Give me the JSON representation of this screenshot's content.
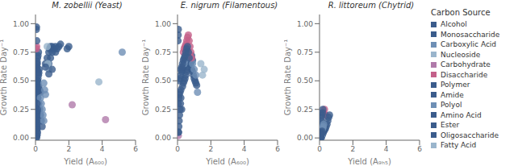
{
  "chart_data": [
    {
      "type": "scatter",
      "title": "M. zobellii (Yeast)",
      "x_label": "Yield (A₆₀₀)",
      "y_label": "Growth Rate Day⁻¹",
      "xlim": [
        0,
        6
      ],
      "ylim": [
        -0.02,
        1.08
      ],
      "xticks": [
        0,
        2,
        4,
        6
      ],
      "yticks": [
        {
          "value": 0,
          "label": "0.00"
        },
        {
          "value": 0.25,
          "label": "0.25"
        },
        {
          "value": 0.5,
          "label": "0.50"
        },
        {
          "value": 0.75,
          "label": "0.75"
        },
        {
          "value": 1.0,
          "label": "1.00"
        }
      ],
      "series": [
        {
          "name": "Alcohol",
          "color": "#3b5c8c",
          "x": [
            0.3,
            0.25,
            0.2,
            0.15,
            0.12,
            0.4,
            0.35,
            0.3,
            0.25,
            0.2,
            0.15,
            0.1,
            0.05
          ],
          "values": [
            0.4,
            0.42,
            0.45,
            0.48,
            0.5,
            0.1,
            0.15,
            0.2,
            0.25,
            0.3,
            0.35,
            0.4,
            0.45
          ]
        },
        {
          "name": "Monosaccharide",
          "color": "#3a5c8c",
          "x": [
            0.05,
            0.07,
            0.06,
            0.08,
            0.1,
            0.08,
            0.05,
            0.06,
            0.07,
            0.08,
            0.09,
            0.05,
            0.06,
            0.07,
            0.1,
            0.12,
            0.05,
            0.06,
            0.07,
            0.08,
            0.1,
            0.12,
            0.15,
            0.18,
            0.2,
            0.22,
            0.08,
            0.09,
            0.1,
            0.12,
            0.15,
            0.18,
            1.0,
            0.9,
            0.85,
            0.8,
            0.7,
            0.6,
            1.2,
            1.1,
            1.0,
            0.9,
            0.8,
            1.5,
            1.4,
            1.3,
            1.2,
            2.0,
            1.9
          ],
          "values": [
            0.02,
            0.03,
            0.05,
            0.07,
            0.08,
            0.1,
            0.12,
            0.15,
            0.18,
            0.2,
            0.22,
            0.25,
            0.28,
            0.3,
            0.32,
            0.35,
            0.38,
            0.4,
            0.42,
            0.45,
            0.48,
            0.5,
            0.52,
            0.55,
            0.57,
            0.6,
            0.62,
            0.65,
            0.67,
            0.7,
            0.72,
            0.75,
            0.8,
            0.8,
            0.78,
            0.75,
            0.7,
            0.65,
            0.8,
            0.78,
            0.75,
            0.7,
            0.65,
            0.82,
            0.8,
            0.78,
            0.75,
            0.8,
            0.78
          ]
        },
        {
          "name": "Carboxylic Acid",
          "color": "#6e8fb5",
          "x": [
            0.5,
            0.45,
            0.4,
            0.35,
            0.3,
            0.6,
            0.55,
            0.5
          ],
          "values": [
            0.15,
            0.2,
            0.25,
            0.3,
            0.35,
            0.38,
            0.42,
            0.48
          ]
        },
        {
          "name": "Nucleoside",
          "color": "#9ab5cc",
          "x": [
            0.8,
            0.75,
            0.7
          ],
          "values": [
            0.6,
            0.65,
            0.8
          ]
        },
        {
          "name": "Carbohydrate",
          "color": "#b07aaa",
          "x": [
            2.2,
            4.2
          ],
          "values": [
            0.29,
            0.16
          ]
        },
        {
          "name": "Disaccharide",
          "color": "#c4608a",
          "x": [
            0.05,
            0.07
          ],
          "values": [
            0.78,
            0.8
          ]
        },
        {
          "name": "Polymer",
          "color": "#3b5c8c",
          "x": [
            0.6,
            0.8,
            1.0
          ],
          "values": [
            0.62,
            0.56,
            0.6
          ]
        },
        {
          "name": "Amide",
          "color": "#3b5c8c",
          "x": [
            0.05,
            0.06,
            0.08,
            0.1
          ],
          "values": [
            0.62,
            0.56,
            0.6,
            0.3
          ]
        },
        {
          "name": "Polyol",
          "color": "#6e8fb5",
          "x": [
            5.2
          ],
          "values": [
            0.75
          ]
        },
        {
          "name": "Amino Acid",
          "color": "#3b5c8c",
          "x": [
            0.06,
            0.07,
            0.08,
            0.1,
            0.12,
            0.06,
            0.05,
            0.07,
            0.08,
            0.05,
            0.06,
            0.07,
            0.08,
            0.1,
            0.12
          ],
          "values": [
            0.0,
            0.01,
            0.02,
            0.03,
            0.05,
            0.07,
            0.09,
            0.11,
            0.13,
            0.15,
            0.17,
            0.19,
            0.21,
            0.23,
            0.25
          ]
        },
        {
          "name": "Ester",
          "color": "#3b5c8c",
          "x": [
            0.05,
            0.08,
            0.1,
            0.15
          ],
          "values": [
            0.95,
            0.85,
            0.65,
            0.58
          ]
        },
        {
          "name": "Oligosaccharide",
          "color": "#3b5c8c",
          "x": [
            0.06
          ],
          "values": [
            0.97
          ]
        },
        {
          "name": "Fatty Acid",
          "color": "#9ab5cc",
          "x": [
            3.8
          ],
          "values": [
            0.49
          ]
        }
      ]
    },
    {
      "type": "scatter",
      "title": "E. nigrum (Filamentous)",
      "x_label": "Yield (A₆₀₀)",
      "y_label": "Growth Rate Day⁻¹",
      "xlim": [
        0,
        6
      ],
      "ylim": [
        -0.02,
        1.08
      ],
      "xticks": [
        0,
        2,
        4,
        6
      ],
      "yticks": [
        {
          "value": 0,
          "label": "0.00"
        },
        {
          "value": 0.25,
          "label": "0.25"
        },
        {
          "value": 0.5,
          "label": "0.50"
        },
        {
          "value": 0.75,
          "label": "0.75"
        },
        {
          "value": 1.0,
          "label": "1.00"
        }
      ],
      "series": [
        {
          "name": "Alcohol",
          "color": "#3b5c8c",
          "x": [
            0.3,
            0.35,
            0.4,
            0.45,
            0.5,
            0.55,
            0.6,
            0.65,
            0.7,
            0.75,
            0.8,
            0.85,
            0.9
          ],
          "values": [
            0.45,
            0.48,
            0.5,
            0.52,
            0.55,
            0.58,
            0.6,
            0.62,
            0.65,
            0.68,
            0.7,
            0.72,
            0.68
          ]
        },
        {
          "name": "Monosaccharide",
          "color": "#3a5c8c",
          "x": [
            0.1,
            0.15,
            0.2,
            0.25,
            0.3,
            0.35,
            0.4,
            0.45,
            0.5,
            0.55,
            0.6,
            0.65,
            0.7,
            0.75,
            0.8,
            0.85,
            0.9,
            0.95,
            1.0,
            1.05,
            1.1,
            1.15
          ],
          "values": [
            0.5,
            0.52,
            0.55,
            0.58,
            0.6,
            0.62,
            0.65,
            0.68,
            0.7,
            0.72,
            0.65,
            0.68,
            0.7,
            0.72,
            0.65,
            0.6,
            0.58,
            0.55,
            0.52,
            0.5,
            0.48,
            0.46
          ]
        },
        {
          "name": "Carboxylic Acid",
          "color": "#6e8fb5",
          "x": [
            0.4,
            0.45,
            0.5,
            0.55,
            0.6,
            0.65,
            0.7,
            0.8,
            0.9,
            1.0,
            1.1,
            1.2
          ],
          "values": [
            0.65,
            0.68,
            0.7,
            0.72,
            0.74,
            0.75,
            0.73,
            0.7,
            0.65,
            0.6,
            0.55,
            0.4
          ]
        },
        {
          "name": "Nucleoside",
          "color": "#9ab5cc",
          "x": [
            1.5,
            1.6,
            1.4
          ],
          "values": [
            0.55,
            0.6,
            0.65
          ]
        },
        {
          "name": "Carbohydrate",
          "color": "#b07aaa",
          "x": [
            0.05
          ],
          "values": [
            0.02
          ]
        },
        {
          "name": "Disaccharide",
          "color": "#c4608a",
          "x": [
            0.35,
            0.4,
            0.45,
            0.5,
            0.55,
            0.6,
            0.65,
            0.7,
            0.75,
            0.8,
            0.85
          ],
          "values": [
            0.75,
            0.78,
            0.8,
            0.82,
            0.85,
            0.88,
            0.9,
            0.85,
            0.8,
            0.75,
            0.7
          ]
        },
        {
          "name": "Polymer",
          "color": "#3b5c8c",
          "x": [
            0.2,
            0.25,
            0.3,
            0.35,
            0.4,
            0.45,
            0.5,
            0.55,
            0.6,
            0.65,
            0.7
          ],
          "values": [
            0.6,
            0.62,
            0.65,
            0.68,
            0.7,
            0.72,
            0.75,
            0.78,
            0.8,
            0.75,
            0.7
          ]
        },
        {
          "name": "Amide",
          "color": "#3b5c8c",
          "x": [
            0.06
          ],
          "values": [
            0.05
          ]
        },
        {
          "name": "Amino Acid",
          "color": "#3b5c8c",
          "x": [
            0.05,
            0.08,
            0.1,
            0.15,
            0.2,
            0.25
          ],
          "values": [
            0.3,
            0.35,
            0.38,
            0.4,
            0.42,
            0.25
          ]
        },
        {
          "name": "Ester",
          "color": "#3b5c8c",
          "x": [
            0.06,
            0.08,
            0.1,
            0.12,
            0.15,
            0.18,
            0.2
          ],
          "values": [
            0.05,
            0.1,
            0.15,
            0.2,
            0.25,
            0.3,
            0.35
          ]
        },
        {
          "name": "Oligosaccharide",
          "color": "#3b5c8c",
          "x": [
            0.03,
            0.04,
            0.05
          ],
          "values": [
            0.85,
            0.9,
            0.95
          ]
        }
      ]
    },
    {
      "type": "scatter",
      "title": "R. littoreum (Chytrid)",
      "x_label": "Yield (A₉ₕ₅)",
      "y_label": "Growth Rate Day⁻¹",
      "xlim": [
        0,
        6
      ],
      "ylim": [
        -0.02,
        1.08
      ],
      "xticks": [
        0,
        2,
        4,
        6
      ],
      "yticks": [
        {
          "value": 0,
          "label": "0.00"
        },
        {
          "value": 0.25,
          "label": "0.25"
        },
        {
          "value": 0.5,
          "label": "0.50"
        },
        {
          "value": 0.75,
          "label": "0.75"
        },
        {
          "value": 1.0,
          "label": "1.00"
        }
      ],
      "legend": "right",
      "legend_title": "Carbon Source",
      "series": [
        {
          "name": "Alcohol",
          "color": "#3b5c8c",
          "x": [
            0.1,
            0.12,
            0.15,
            0.18,
            0.2,
            0.22,
            0.25
          ],
          "values": [
            0.0,
            0.01,
            0.02,
            0.03,
            0.04,
            0.05,
            0.06
          ]
        },
        {
          "name": "Monosaccharide",
          "color": "#3a5c8c",
          "x": [
            0.05,
            0.06,
            0.07,
            0.08,
            0.09,
            0.1,
            0.12,
            0.15,
            0.18,
            0.2,
            0.22,
            0.25
          ],
          "values": [
            0.0,
            0.01,
            0.02,
            0.03,
            0.04,
            0.05,
            0.06,
            0.07,
            0.08,
            0.09,
            0.1,
            0.12
          ]
        },
        {
          "name": "Carboxylic Acid",
          "color": "#6e8fb5",
          "x": [
            0.08,
            0.1,
            0.12,
            0.15,
            0.18
          ],
          "values": [
            0.0,
            0.01,
            0.02,
            0.03,
            0.04
          ]
        },
        {
          "name": "Nucleoside",
          "color": "#9ab5cc",
          "x": [
            0.05,
            0.06,
            0.07,
            0.08
          ],
          "values": [
            0.0,
            0.01,
            0.02,
            0.03
          ]
        },
        {
          "name": "Carbohydrate",
          "color": "#b07aaa",
          "x": [
            0.05,
            0.06,
            0.07,
            0.08,
            0.09,
            0.1
          ],
          "values": [
            0.0,
            0.01,
            0.02,
            0.03,
            0.04,
            0.05
          ]
        },
        {
          "name": "Disaccharide",
          "color": "#c4608a",
          "x": [
            0.25,
            0.3,
            0.35
          ],
          "values": [
            0.22,
            0.25,
            0.2
          ]
        },
        {
          "name": "Polymer",
          "color": "#3b5c8c",
          "x": [
            0.05,
            0.06,
            0.07,
            0.08,
            0.1,
            0.12,
            0.15,
            0.18,
            0.2,
            0.22,
            0.25,
            0.3,
            0.35,
            0.4,
            0.45,
            0.5,
            0.55,
            0.6
          ],
          "values": [
            0.05,
            0.08,
            0.1,
            0.12,
            0.15,
            0.18,
            0.2,
            0.22,
            0.25,
            0.05,
            0.06,
            0.07,
            0.08,
            0.1,
            0.12,
            0.15,
            0.18,
            0.2
          ]
        },
        {
          "name": "Amide",
          "color": "#3b5c8c",
          "x": [
            0.05,
            0.06,
            0.07,
            0.08,
            0.09,
            0.1,
            0.12,
            0.15
          ],
          "values": [
            0.0,
            0.01,
            0.02,
            0.03,
            0.04,
            0.05,
            0.06,
            0.07
          ]
        },
        {
          "name": "Polyol",
          "color": "#6e8fb5",
          "x": [
            0.05,
            0.06,
            0.07,
            0.08,
            0.09,
            0.1,
            0.12,
            0.15,
            0.18,
            0.2,
            0.22,
            0.25
          ],
          "values": [
            0.0,
            0.01,
            0.02,
            0.03,
            0.04,
            0.05,
            0.06,
            0.07,
            0.08,
            0.09,
            0.1,
            0.12
          ]
        },
        {
          "name": "Amino Acid",
          "color": "#3b5c8c",
          "x": [
            0.06,
            0.07,
            0.08,
            0.09,
            0.1,
            0.12,
            0.15
          ],
          "values": [
            0.0,
            0.01,
            0.02,
            0.03,
            0.04,
            0.05,
            0.06
          ]
        },
        {
          "name": "Ester",
          "color": "#3b5c8c",
          "x": [
            0.05,
            0.06,
            0.07,
            0.08
          ],
          "values": [
            0.0,
            0.01,
            0.02,
            0.03
          ]
        },
        {
          "name": "Oligosaccharide",
          "color": "#3b5c8c",
          "x": [],
          "values": []
        },
        {
          "name": "Fatty Acid",
          "color": "#9ab5cc",
          "x": [],
          "values": []
        }
      ]
    }
  ]
}
